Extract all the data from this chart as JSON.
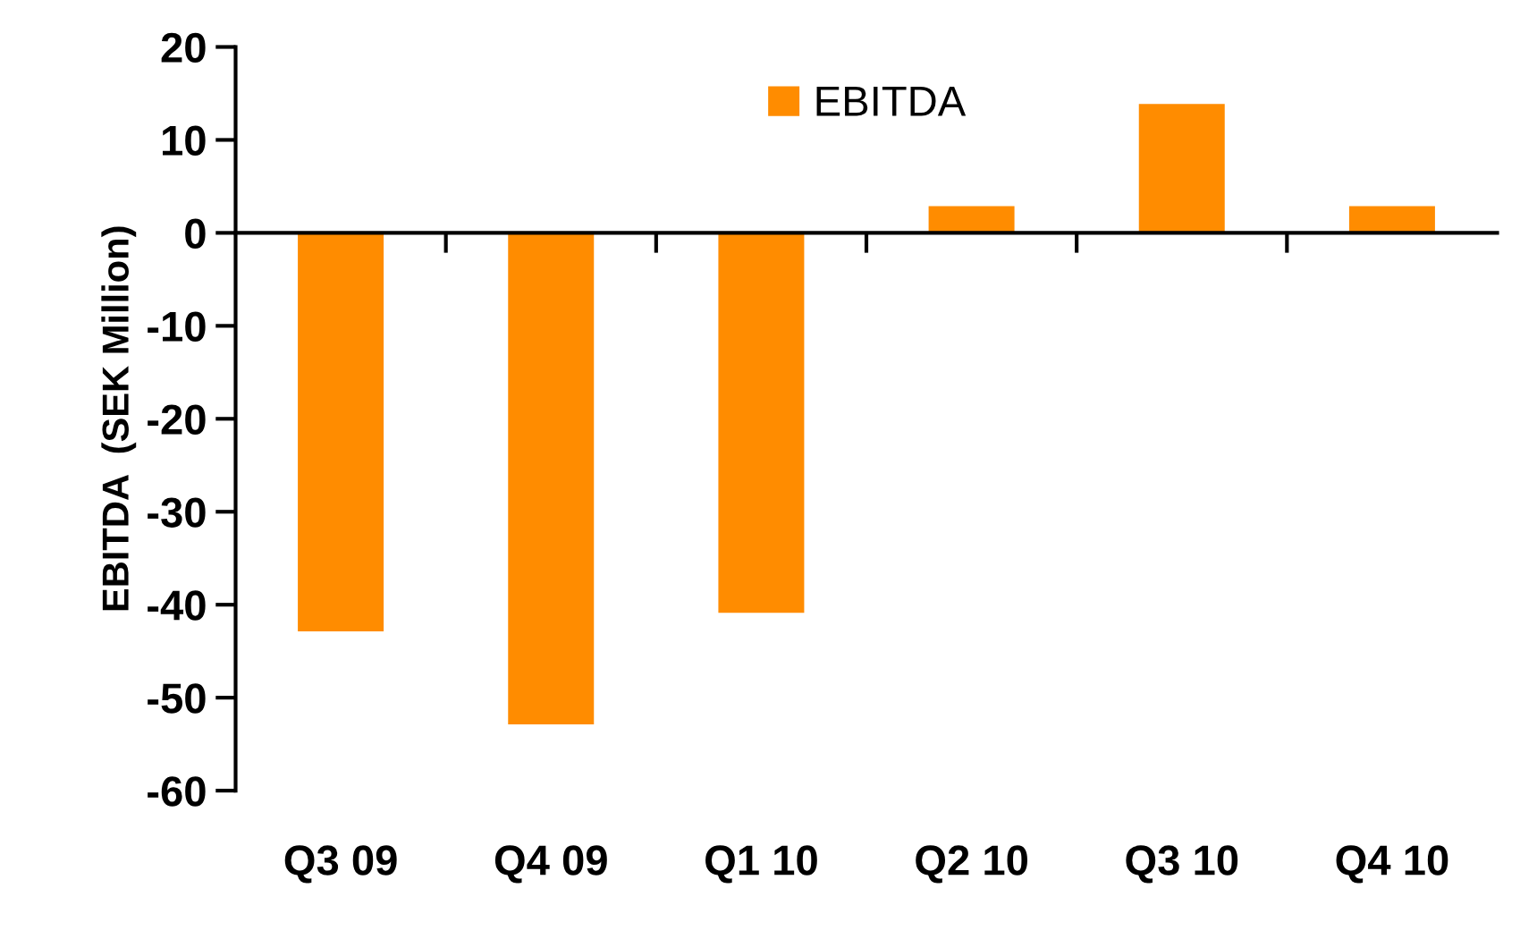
{
  "chart_data": {
    "type": "bar",
    "ylabel": "EBITDA  (SEK Million)",
    "categories": [
      "Q3 09",
      "Q4 09",
      "Q1 10",
      "Q2 10",
      "Q3 10",
      "Q4 10"
    ],
    "series": [
      {
        "name": "EBITDA",
        "color": "#ff8c00",
        "values": [
          -43,
          -53,
          -41,
          3,
          14,
          3
        ]
      }
    ],
    "ylim": [
      -60,
      20
    ],
    "yticks": [
      -60,
      -50,
      -40,
      -30,
      -20,
      -10,
      0,
      10,
      20
    ],
    "legend": "top"
  }
}
